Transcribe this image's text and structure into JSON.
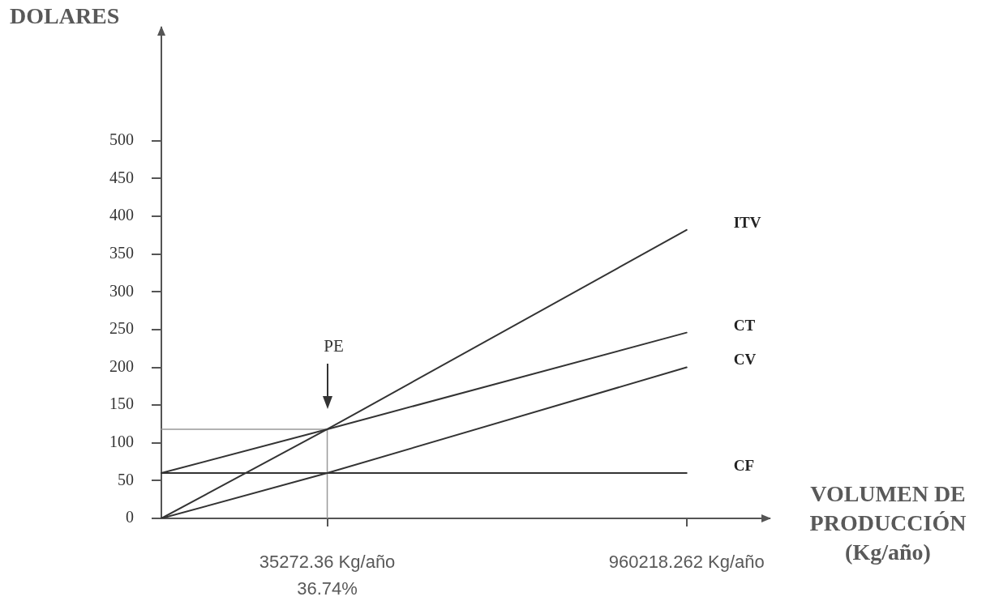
{
  "chart_data": {
    "type": "line",
    "ylabel": "DOLARES",
    "xlabel": "VOLUMEN DE\nPRODUCCIÓN\n(Kg/año)",
    "categories": [
      null,
      null,
      null,
      null,
      null,
      null,
      "35272.36 Kg/año\n36.74%",
      null,
      null,
      null,
      null,
      null,
      null,
      null,
      null,
      null,
      null,
      null,
      null,
      "960218.262 Kg/año",
      null,
      null,
      null
    ],
    "series": [
      {
        "name": "ITV",
        "color": "#333333",
        "values": [
          0,
          null,
          null,
          null,
          null,
          null,
          118,
          null,
          null,
          null,
          null,
          null,
          null,
          null,
          null,
          null,
          null,
          null,
          null,
          382,
          null,
          null,
          null
        ]
      },
      {
        "name": "CT",
        "color": "#333333",
        "values": [
          60,
          null,
          null,
          null,
          null,
          null,
          118,
          null,
          null,
          null,
          null,
          null,
          null,
          null,
          null,
          null,
          null,
          null,
          null,
          246,
          null,
          null,
          null
        ]
      },
      {
        "name": "CV",
        "color": "#333333",
        "values": [
          0,
          null,
          null,
          null,
          null,
          null,
          60,
          null,
          null,
          null,
          null,
          null,
          null,
          null,
          null,
          null,
          null,
          null,
          null,
          200,
          null,
          null,
          null
        ]
      },
      {
        "name": "CF",
        "color": "#333333",
        "values": [
          60,
          null,
          null,
          null,
          null,
          null,
          null,
          null,
          null,
          null,
          null,
          null,
          null,
          null,
          null,
          null,
          null,
          null,
          null,
          60,
          null,
          null,
          null
        ]
      },
      {
        "color": "#999999",
        "values": [
          118,
          null,
          null,
          null,
          null,
          null,
          118,
          null,
          null,
          null,
          null,
          null,
          null,
          null,
          null,
          null,
          null,
          null,
          null,
          null,
          null,
          null,
          null
        ]
      },
      {
        "color": "#999999",
        "x": [
          "35272.36 Kg/año\n36.74%",
          "35272.36 Kg/año\n36.74%"
        ],
        "values": [
          118,
          0
        ]
      }
    ],
    "ylim": [
      0,
      650
    ],
    "yticks": [
      0,
      50,
      100,
      150,
      200,
      250,
      300,
      350,
      400,
      450,
      500
    ],
    "annotations": [
      "PE"
    ],
    "grid": false,
    "legend": false,
    "marker": "none",
    "line_style": "solid"
  }
}
